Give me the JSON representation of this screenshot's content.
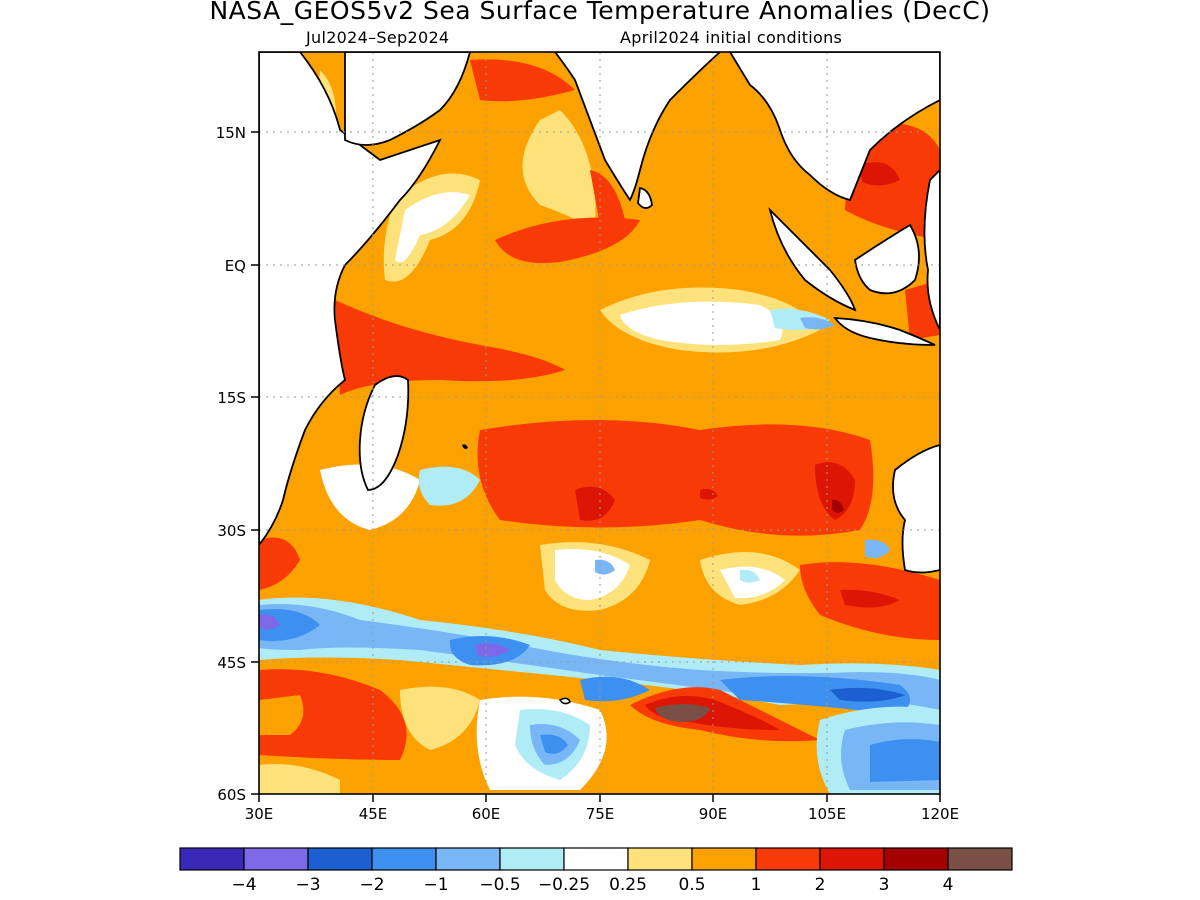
{
  "title": "NASA_GEOS5v2 Sea Surface Temperature Anomalies (DecC)",
  "period": "Jul2024–Sep2024",
  "init": "April2024 initial conditions",
  "lat_labels": [
    "15N",
    "EQ",
    "15S",
    "30S",
    "45S",
    "60S"
  ],
  "lon_labels": [
    "30E",
    "45E",
    "60E",
    "75E",
    "90E",
    "105E",
    "120E"
  ],
  "colorbar": {
    "colors": [
      "#3a28b8",
      "#7d68e8",
      "#1b5fd0",
      "#3d8ff0",
      "#78b6f5",
      "#b0ecf6",
      "#ffffff",
      "#fde27b",
      "#fba200",
      "#f83a06",
      "#dd1505",
      "#a50000",
      "#7a5046"
    ],
    "labels": [
      "−4",
      "−3",
      "−2",
      "−1",
      "−0.5",
      "−0.25",
      "0.25",
      "0.5",
      "1",
      "2",
      "3",
      "4"
    ]
  }
}
